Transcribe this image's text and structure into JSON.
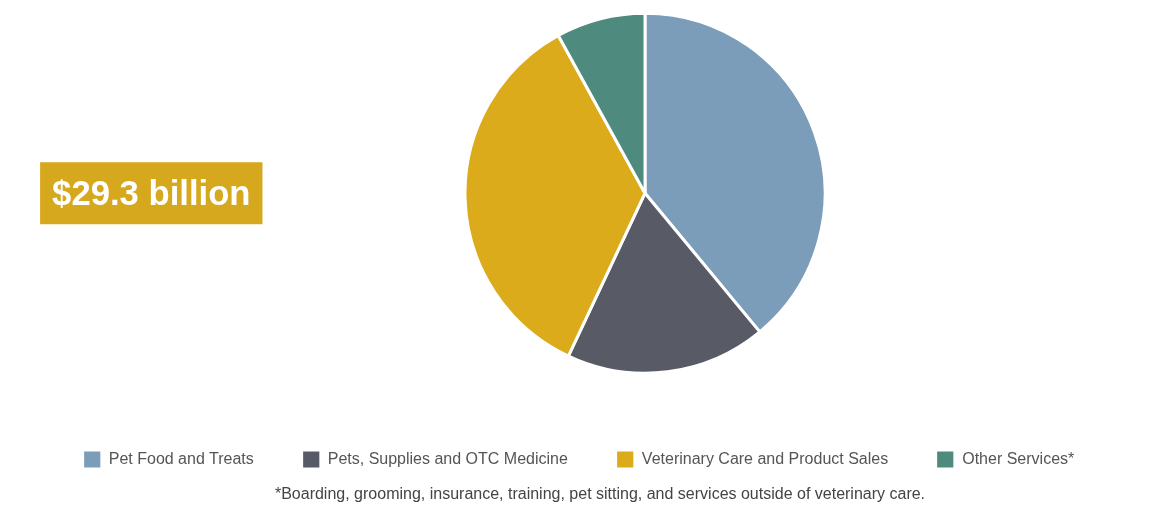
{
  "chart_data": {
    "type": "pie",
    "categories": [
      "Pet Food and Treats",
      "Pets, Supplies and OTC Medicine",
      "Veterinary Care and Product Sales",
      "Other Services*"
    ],
    "values": [
      39,
      18,
      35,
      8
    ],
    "colors": [
      "#7b9dba",
      "#585b66",
      "#dbab1b",
      "#4e8b7e"
    ],
    "legend": "bottom",
    "annotations": [
      "$29.3 billion",
      "*Boarding, grooming, insurance, training, pet sitting, and services outside of veterinary care."
    ]
  }
}
